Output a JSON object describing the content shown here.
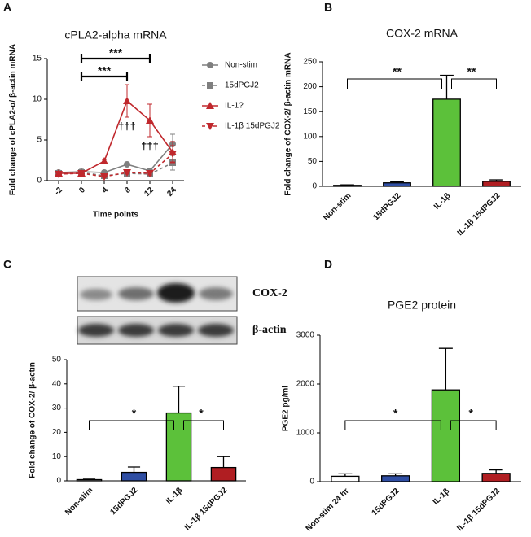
{
  "chart_data": [
    {
      "type": "line",
      "panel": "A",
      "title": "cPLA2-alpha mRNA",
      "ylabel": "Fold change of cPLA2-α/ β-actin mRNA",
      "xlabel": "Time points",
      "categories": [
        "-2",
        "0",
        "4",
        "8",
        "12",
        "24"
      ],
      "ylim": [
        0,
        15
      ],
      "yticks": [
        0,
        5,
        10,
        15
      ],
      "legend": "right",
      "series": [
        {
          "name": "Non-stim",
          "color": "#7f7f7f",
          "marker": "circle",
          "dashed": false,
          "values": [
            1.0,
            1.1,
            1.0,
            2.0,
            1.2,
            4.5
          ],
          "errors": [
            0.2,
            0.3,
            0.1,
            0.2,
            0.2,
            1.2
          ]
        },
        {
          "name": "15dPGJ2",
          "color": "#7f7f7f",
          "marker": "square",
          "dashed": true,
          "values": [
            0.9,
            1.0,
            0.6,
            0.9,
            0.8,
            2.2
          ],
          "errors": [
            0.2,
            0.2,
            0.1,
            0.2,
            0.2,
            0.9
          ]
        },
        {
          "name": "IL-1?",
          "color": "#c0282d",
          "marker": "triangle",
          "dashed": false,
          "values": [
            0.9,
            0.9,
            2.4,
            9.8,
            7.4,
            3.5
          ],
          "errors": [
            0.2,
            0.3,
            0.2,
            2.0,
            2.0,
            1.3
          ]
        },
        {
          "name": "IL-1β 15dPGJ2",
          "color": "#c0282d",
          "marker": "triangle-down",
          "dashed": true,
          "values": [
            0.8,
            0.9,
            0.5,
            1.0,
            0.9,
            3.3
          ],
          "errors": [
            0.2,
            0.2,
            0.1,
            0.2,
            0.2,
            1.0
          ]
        }
      ],
      "brackets": [
        {
          "label": "***",
          "from": "0",
          "to": "12"
        },
        {
          "label": "***",
          "from": "0",
          "to": "8"
        }
      ],
      "annotations": [
        {
          "text": "†††",
          "at": "8"
        },
        {
          "text": "†††",
          "at": "12"
        }
      ]
    },
    {
      "type": "bar",
      "panel": "B",
      "title": "COX-2 mRNA",
      "ylabel": "Fold change of COX-2/ β-actin mRNA",
      "categories": [
        "Non-stim",
        "15dPGJ2",
        "IL-1β",
        "IL-1β 15dPGJ2"
      ],
      "values": [
        2,
        7,
        175,
        10
      ],
      "errors": [
        1,
        2,
        48,
        3
      ],
      "colors": [
        "#ffffff",
        "#2f4ea3",
        "#5cc13a",
        "#b01e22"
      ],
      "ylim": [
        0,
        250
      ],
      "yticks": [
        0,
        50,
        100,
        150,
        200,
        250
      ],
      "brackets": [
        {
          "label": "**",
          "from": "Non-stim",
          "to": "IL-1β"
        },
        {
          "label": "**",
          "from": "IL-1β",
          "to": "IL-1β 15dPGJ2"
        }
      ]
    },
    {
      "type": "bar",
      "panel": "C",
      "ylabel": "Fold change of COX-2/ β-actin",
      "blot_labels": [
        "COX-2",
        "β-actin"
      ],
      "categories": [
        "Non-stim",
        "15dPGJ2",
        "IL-1β",
        "IL-1β 15dPGJ2"
      ],
      "values": [
        0.5,
        3.5,
        28,
        5.5
      ],
      "errors": [
        0.2,
        2.2,
        11,
        4.5
      ],
      "colors": [
        "#ffffff",
        "#2f4ea3",
        "#5cc13a",
        "#b01e22"
      ],
      "ylim": [
        0,
        50
      ],
      "yticks": [
        0,
        10,
        20,
        30,
        40,
        50
      ],
      "brackets": [
        {
          "label": "*",
          "from": "Non-stim",
          "to": "IL-1β"
        },
        {
          "label": "*",
          "from": "IL-1β",
          "to": "IL-1β 15dPGJ2"
        }
      ]
    },
    {
      "type": "bar",
      "panel": "D",
      "title": "PGE2 protein",
      "ylabel": "PGE2 pg/ml",
      "categories": [
        "Non-stim 24 hr",
        "15dPGJ2",
        "IL-1β",
        "IL-1β 15dPGJ2"
      ],
      "values": [
        110,
        120,
        1880,
        170
      ],
      "errors": [
        50,
        40,
        850,
        70
      ],
      "colors": [
        "#ffffff",
        "#2f4ea3",
        "#5cc13a",
        "#b01e22"
      ],
      "ylim": [
        0,
        3000
      ],
      "yticks": [
        0,
        1000,
        2000,
        3000
      ],
      "brackets": [
        {
          "label": "*",
          "from": "Non-stim 24 hr",
          "to": "IL-1β"
        },
        {
          "label": "*",
          "from": "IL-1β",
          "to": "IL-1β 15dPGJ2"
        }
      ]
    }
  ]
}
